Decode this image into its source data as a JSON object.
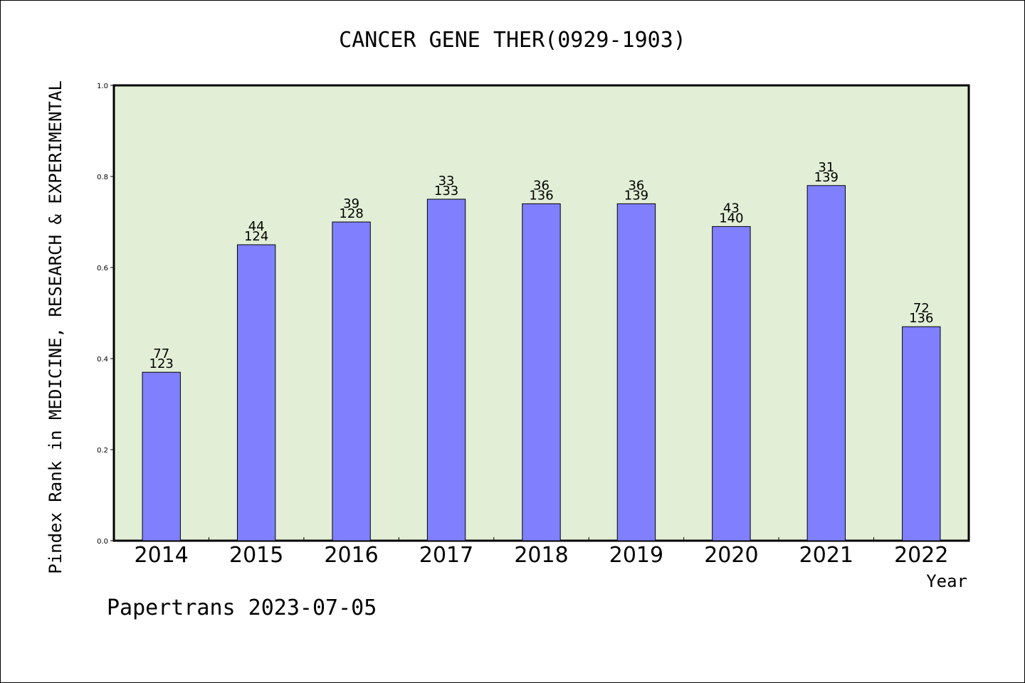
{
  "chart_data": {
    "type": "bar",
    "title": "CANCER GENE THER(0929-1903)",
    "xlabel": "Year",
    "ylabel": "Pindex Rank in MEDICINE, RESEARCH & EXPERIMENTAL",
    "ylim": [
      0,
      1.0
    ],
    "yticks": [
      "0.0",
      "0.2",
      "0.4",
      "0.6",
      "0.8",
      "1.0"
    ],
    "categories": [
      "2014",
      "2015",
      "2016",
      "2017",
      "2018",
      "2019",
      "2020",
      "2021",
      "2022"
    ],
    "values": [
      0.37,
      0.65,
      0.7,
      0.75,
      0.74,
      0.74,
      0.69,
      0.78,
      0.47
    ],
    "labels_top": [
      "77",
      "44",
      "39",
      "33",
      "36",
      "36",
      "43",
      "31",
      "72"
    ],
    "labels_bottom": [
      "123",
      "124",
      "128",
      "133",
      "136",
      "139",
      "140",
      "139",
      "136"
    ],
    "grid": false,
    "colors": {
      "plot_background": "#e2efd6",
      "bar": "#8080ff",
      "bar_edge": "#000000"
    }
  },
  "footer": "Papertrans 2023-07-05"
}
